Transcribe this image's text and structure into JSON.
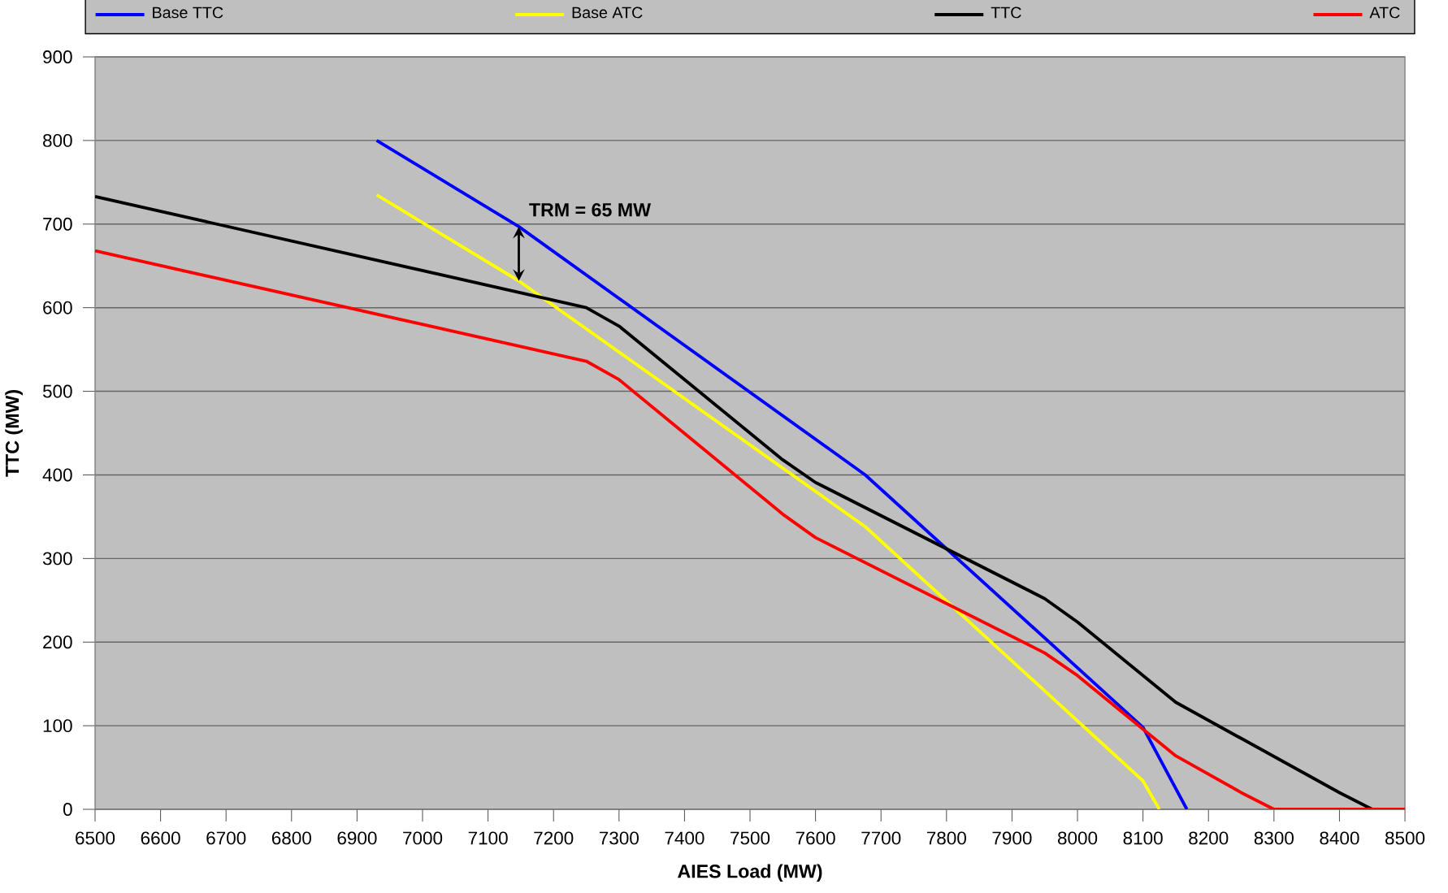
{
  "chart_data": {
    "type": "line",
    "xlabel": "AIES Load (MW)",
    "ylabel": "TTC (MW)",
    "series": [
      {
        "name": "Base TTC",
        "color": "#0000ff",
        "x": [
          6930,
          7147,
          7676,
          8100,
          8167
        ],
        "values": [
          800,
          697,
          400,
          98,
          0
        ]
      },
      {
        "name": "Base ATC",
        "color": "#ffff00",
        "x": [
          6930,
          7147,
          7676,
          8100,
          8125
        ],
        "values": [
          735,
          632,
          338,
          34,
          0
        ]
      },
      {
        "name": "TTC",
        "color": "#000000",
        "x": [
          6500,
          7250,
          7300,
          7550,
          7600,
          7950,
          8000,
          8150,
          8400,
          8450
        ],
        "values": [
          733,
          600,
          578,
          418,
          391,
          252,
          224,
          128,
          20,
          0
        ]
      },
      {
        "name": "ATC",
        "color": "#ff0000",
        "x": [
          6500,
          7250,
          7300,
          7550,
          7600,
          7950,
          8000,
          8150,
          8250,
          8300,
          8500
        ],
        "values": [
          668,
          536,
          514,
          353,
          325,
          187,
          160,
          64,
          20,
          0,
          0
        ]
      }
    ],
    "annotations": [
      {
        "text": "TRM = 65 MW",
        "x": 7147,
        "y": 697
      }
    ],
    "xlim": [
      6500,
      8500
    ],
    "ylim": [
      0,
      900
    ],
    "xticks": [
      6500,
      6600,
      6700,
      6800,
      6900,
      7000,
      7100,
      7200,
      7300,
      7400,
      7500,
      7600,
      7700,
      7800,
      7900,
      8000,
      8100,
      8200,
      8300,
      8400,
      8500
    ],
    "yticks": [
      0,
      100,
      200,
      300,
      400,
      500,
      600,
      700,
      800,
      900
    ],
    "grid": "y",
    "legend": "top",
    "marker": "none",
    "line_style": "solid"
  }
}
